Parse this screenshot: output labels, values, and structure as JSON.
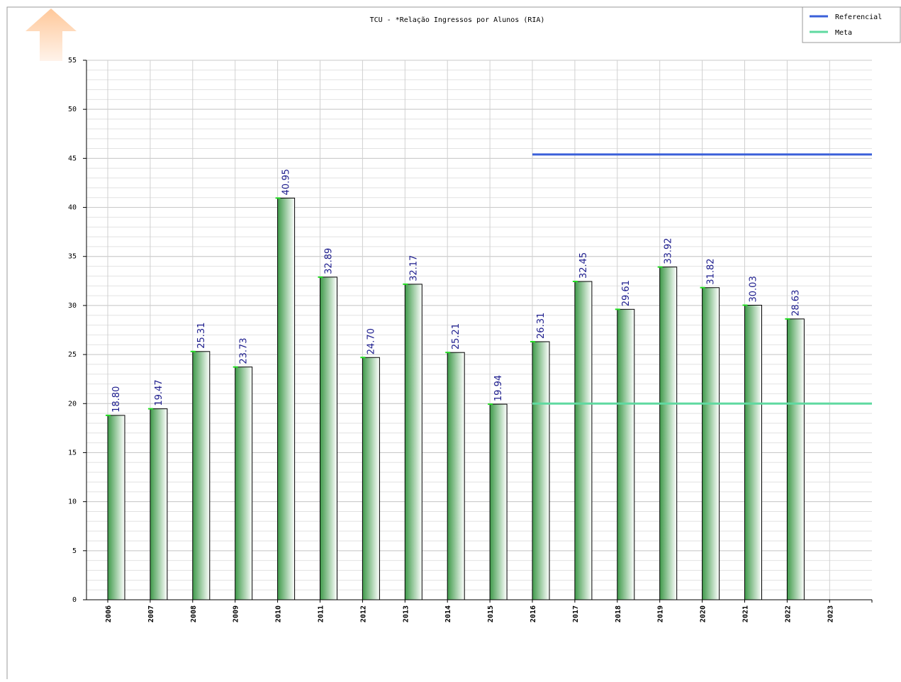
{
  "chart_data": {
    "type": "bar",
    "title": "TCU - *Relação Ingressos por Alunos (RIA)",
    "categories": [
      "2006",
      "2007",
      "2008",
      "2009",
      "2010",
      "2011",
      "2012",
      "2013",
      "2014",
      "2015",
      "2016",
      "2017",
      "2018",
      "2019",
      "2020",
      "2021",
      "2022",
      "2023"
    ],
    "values": [
      18.8,
      19.47,
      25.31,
      23.73,
      40.95,
      32.89,
      24.7,
      32.17,
      25.21,
      19.94,
      26.31,
      32.45,
      29.61,
      33.92,
      31.82,
      30.03,
      28.63,
      null
    ],
    "value_labels": [
      "18.80",
      "19.47",
      "25.31",
      "23.73",
      "40.95",
      "32.89",
      "24.70",
      "32.17",
      "25.21",
      "19.94",
      "26.31",
      "32.45",
      "29.61",
      "33.92",
      "31.82",
      "30.03",
      "28.63",
      null
    ],
    "color": "#3f9a4a",
    "series": [
      {
        "name": "Referencial",
        "color": "#3a5fd9",
        "values": [
          null,
          null,
          null,
          null,
          null,
          null,
          null,
          null,
          null,
          null,
          45.4,
          45.4,
          45.4,
          45.4,
          45.4,
          45.4,
          45.4,
          45.4
        ]
      },
      {
        "name": "Meta",
        "color": "#5fd9a0",
        "values": [
          null,
          null,
          null,
          null,
          null,
          null,
          null,
          null,
          null,
          null,
          20,
          20,
          20,
          20,
          20,
          20,
          20,
          20
        ]
      }
    ],
    "ylim": [
      0,
      55
    ],
    "yticks": [
      0,
      5,
      10,
      15,
      20,
      25,
      30,
      35,
      40,
      45,
      50,
      55
    ],
    "minor_step": 1,
    "grid": true,
    "legend": "top-right"
  }
}
